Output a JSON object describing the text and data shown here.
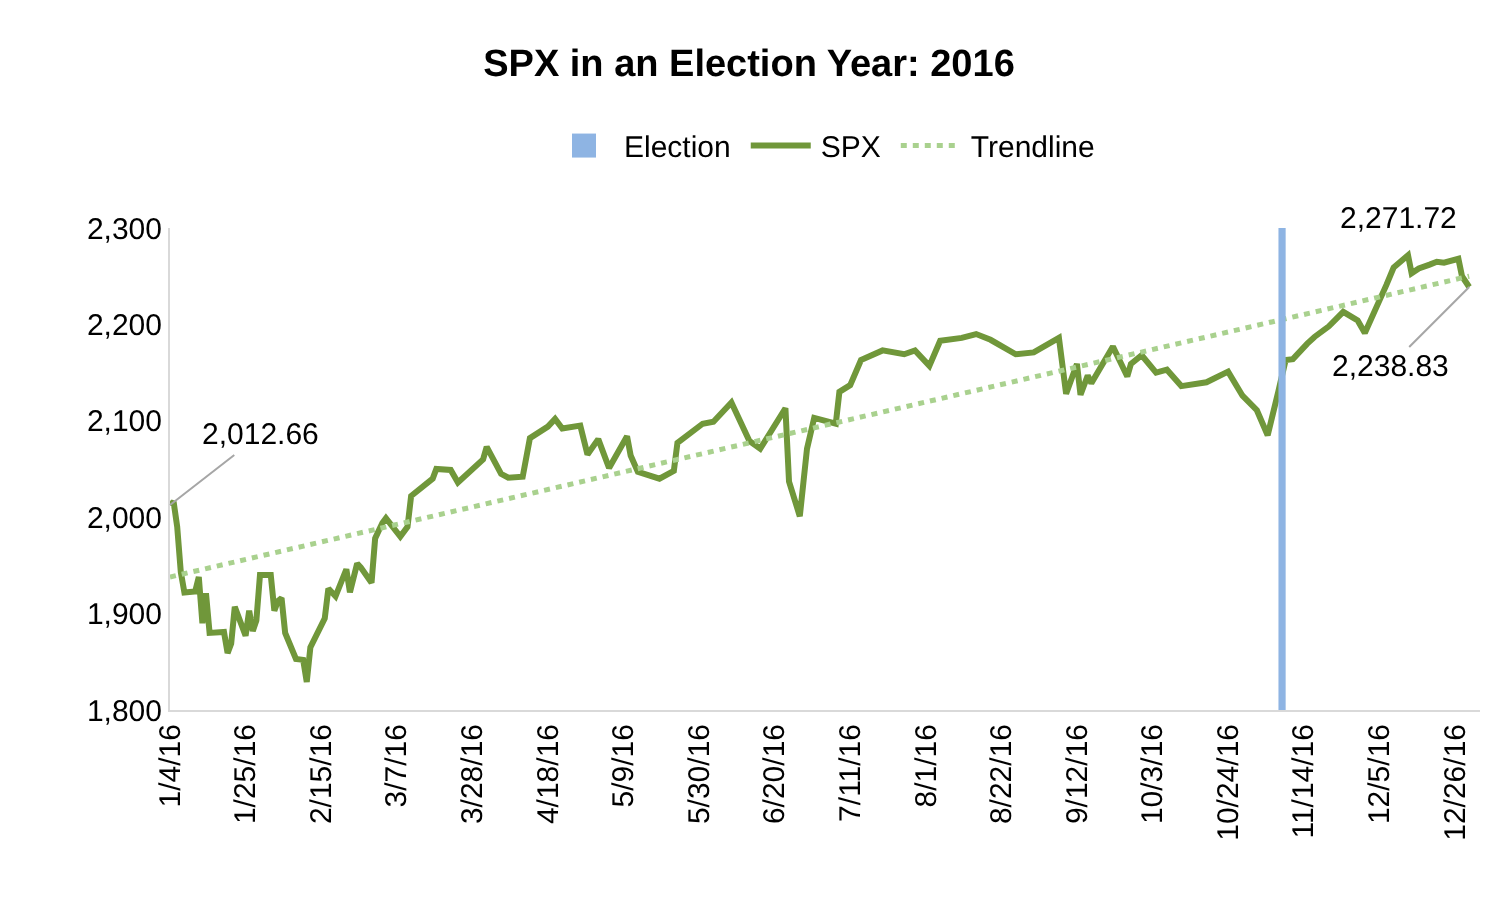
{
  "chart_data": {
    "type": "line",
    "title": "SPX in an Election Year: 2016",
    "x": [
      "2016-01-04",
      "2016-01-05",
      "2016-01-06",
      "2016-01-07",
      "2016-01-08",
      "2016-01-11",
      "2016-01-12",
      "2016-01-13",
      "2016-01-14",
      "2016-01-15",
      "2016-01-19",
      "2016-01-20",
      "2016-01-21",
      "2016-01-22",
      "2016-01-25",
      "2016-01-26",
      "2016-01-27",
      "2016-01-28",
      "2016-01-29",
      "2016-02-01",
      "2016-02-02",
      "2016-02-03",
      "2016-02-04",
      "2016-02-05",
      "2016-02-08",
      "2016-02-10",
      "2016-02-11",
      "2016-02-12",
      "2016-02-16",
      "2016-02-17",
      "2016-02-19",
      "2016-02-22",
      "2016-02-23",
      "2016-02-25",
      "2016-02-26",
      "2016-02-29",
      "2016-03-01",
      "2016-03-03",
      "2016-03-04",
      "2016-03-08",
      "2016-03-10",
      "2016-03-11",
      "2016-03-17",
      "2016-03-18",
      "2016-03-22",
      "2016-03-24",
      "2016-03-31",
      "2016-04-01",
      "2016-04-05",
      "2016-04-07",
      "2016-04-11",
      "2016-04-13",
      "2016-04-18",
      "2016-04-20",
      "2016-04-22",
      "2016-04-27",
      "2016-04-29",
      "2016-05-02",
      "2016-05-05",
      "2016-05-10",
      "2016-05-11",
      "2016-05-13",
      "2016-05-19",
      "2016-05-23",
      "2016-05-24",
      "2016-05-31",
      "2016-06-03",
      "2016-06-08",
      "2016-06-13",
      "2016-06-16",
      "2016-06-23",
      "2016-06-24",
      "2016-06-27",
      "2016-06-28",
      "2016-06-29",
      "2016-07-01",
      "2016-07-07",
      "2016-07-08",
      "2016-07-11",
      "2016-07-14",
      "2016-07-20",
      "2016-07-26",
      "2016-07-29",
      "2016-08-02",
      "2016-08-05",
      "2016-08-11",
      "2016-08-15",
      "2016-08-19",
      "2016-08-26",
      "2016-08-31",
      "2016-09-07",
      "2016-09-09",
      "2016-09-12",
      "2016-09-13",
      "2016-09-15",
      "2016-09-16",
      "2016-09-22",
      "2016-09-26",
      "2016-09-27",
      "2016-09-30",
      "2016-10-04",
      "2016-10-07",
      "2016-10-11",
      "2016-10-18",
      "2016-10-24",
      "2016-10-28",
      "2016-11-01",
      "2016-11-04",
      "2016-11-07",
      "2016-11-09",
      "2016-11-11",
      "2016-11-15",
      "2016-11-17",
      "2016-11-21",
      "2016-11-25",
      "2016-11-29",
      "2016-12-01",
      "2016-12-07",
      "2016-12-09",
      "2016-12-13",
      "2016-12-14",
      "2016-12-16",
      "2016-12-19",
      "2016-12-21",
      "2016-12-23",
      "2016-12-27",
      "2016-12-28",
      "2016-12-30"
    ],
    "series": [
      {
        "name": "SPX",
        "color": "#70973a",
        "values": [
          2012.66,
          2016,
          1990,
          1943,
          1922,
          1923,
          1938,
          1890,
          1921,
          1880,
          1881,
          1859,
          1869,
          1907,
          1877,
          1903,
          1882,
          1893,
          1940,
          1940,
          1903,
          1913,
          1916,
          1880,
          1853,
          1852,
          1829,
          1865,
          1895,
          1926,
          1918,
          1946,
          1922,
          1952,
          1948,
          1932,
          1978,
          1994,
          1999,
          1980,
          1990,
          2022,
          2040,
          2050,
          2049,
          2036,
          2060,
          2073,
          2045,
          2041,
          2042,
          2082,
          2094,
          2102,
          2092,
          2095,
          2065,
          2081,
          2051,
          2084,
          2064,
          2047,
          2040,
          2048,
          2077,
          2097,
          2099,
          2119,
          2079,
          2071,
          2113,
          2037,
          2001,
          2036,
          2071,
          2103,
          2097,
          2130,
          2137,
          2163,
          2173,
          2169,
          2173,
          2157,
          2183,
          2186,
          2190,
          2184,
          2169,
          2171,
          2186,
          2128,
          2159,
          2127,
          2147,
          2139,
          2177,
          2146,
          2159,
          2168,
          2150,
          2153,
          2136,
          2140,
          2151,
          2126,
          2111,
          2085,
          2131,
          2163,
          2164,
          2180,
          2187,
          2198,
          2213,
          2204,
          2191,
          2241,
          2259,
          2271.72,
          2253,
          2258,
          2262,
          2265,
          2264,
          2268,
          2250,
          2238.83
        ]
      },
      {
        "name": "Trendline",
        "type": "line",
        "color": "#a9d18e",
        "line_style": "dotted",
        "x": [
          "2016-01-04",
          "2016-12-30"
        ],
        "values": [
          1938,
          2250
        ]
      }
    ],
    "bands": [
      {
        "axis": "x",
        "from": "2016-11-07",
        "to": "2016-11-09",
        "label": "Election",
        "color": "#8eb4e3"
      }
    ],
    "annotations": [
      {
        "text": "2,012.66",
        "x": "2016-01-04",
        "y": 2012.66
      },
      {
        "text": "2,271.72",
        "x": "2016-12-13",
        "y": 2271.72
      },
      {
        "text": "2,238.83",
        "x": "2016-12-30",
        "y": 2238.83
      }
    ],
    "xlim": [
      "2016-01-04",
      "2017-01-02"
    ],
    "xticks": [
      {
        "value": "2016-01-04",
        "label": "1/4/16"
      },
      {
        "value": "2016-01-25",
        "label": "1/25/16"
      },
      {
        "value": "2016-02-15",
        "label": "2/15/16"
      },
      {
        "value": "2016-03-07",
        "label": "3/7/16"
      },
      {
        "value": "2016-03-28",
        "label": "3/28/16"
      },
      {
        "value": "2016-04-18",
        "label": "4/18/16"
      },
      {
        "value": "2016-05-09",
        "label": "5/9/16"
      },
      {
        "value": "2016-05-30",
        "label": "5/30/16"
      },
      {
        "value": "2016-06-20",
        "label": "6/20/16"
      },
      {
        "value": "2016-07-11",
        "label": "7/11/16"
      },
      {
        "value": "2016-08-01",
        "label": "8/1/16"
      },
      {
        "value": "2016-08-22",
        "label": "8/22/16"
      },
      {
        "value": "2016-09-12",
        "label": "9/12/16"
      },
      {
        "value": "2016-10-03",
        "label": "10/3/16"
      },
      {
        "value": "2016-10-24",
        "label": "10/24/16"
      },
      {
        "value": "2016-11-14",
        "label": "11/14/16"
      },
      {
        "value": "2016-12-05",
        "label": "12/5/16"
      },
      {
        "value": "2016-12-26",
        "label": "12/26/16"
      }
    ],
    "ylim": [
      1800,
      2300
    ],
    "yticks": [
      {
        "value": 1800,
        "label": "1,800"
      },
      {
        "value": 1900,
        "label": "1,900"
      },
      {
        "value": 2000,
        "label": "2,000"
      },
      {
        "value": 2100,
        "label": "2,100"
      },
      {
        "value": 2200,
        "label": "2,200"
      },
      {
        "value": 2300,
        "label": "2,300"
      }
    ],
    "grid": false,
    "legend": "top",
    "marker": "none",
    "line_style": "solid"
  }
}
